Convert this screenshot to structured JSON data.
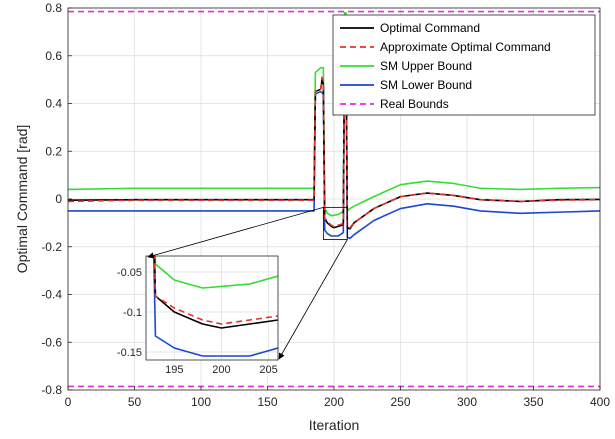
{
  "chart_data": {
    "type": "line",
    "title": "",
    "xlabel": "Iteration",
    "ylabel": "Optimal Command [rad]",
    "xlim": [
      0,
      400
    ],
    "ylim": [
      -0.8,
      0.8
    ],
    "xticks": [
      0,
      50,
      100,
      150,
      200,
      250,
      300,
      350,
      400
    ],
    "yticks": [
      -0.8,
      -0.6,
      -0.4,
      -0.2,
      0,
      0.2,
      0.4,
      0.6,
      0.8
    ],
    "xtick_labels": [
      "0",
      "50",
      "100",
      "150",
      "200",
      "250",
      "300",
      "350",
      "400"
    ],
    "ytick_labels": [
      "-0.8",
      "-0.6",
      "-0.4",
      "-0.2",
      "0",
      "0.2",
      "0.4",
      "0.6",
      "0.8"
    ],
    "grid": true,
    "legend_position": "top-right",
    "series": [
      {
        "name": "Optimal Command",
        "color": "#000000",
        "dash": "solid",
        "points": [
          [
            0,
            -0.005
          ],
          [
            50,
            -0.003
          ],
          [
            100,
            -0.003
          ],
          [
            150,
            -0.003
          ],
          [
            185,
            -0.003
          ],
          [
            186,
            0.45
          ],
          [
            190,
            0.46
          ],
          [
            191,
            0.5
          ],
          [
            192,
            0.48
          ],
          [
            193,
            -0.08
          ],
          [
            195,
            -0.1
          ],
          [
            198,
            -0.115
          ],
          [
            200,
            -0.12
          ],
          [
            203,
            -0.115
          ],
          [
            206,
            -0.11
          ],
          [
            207,
            -0.1
          ],
          [
            208,
            0.72
          ],
          [
            209,
            0.73
          ],
          [
            210,
            -0.12
          ],
          [
            212,
            -0.125
          ],
          [
            215,
            -0.1
          ],
          [
            230,
            -0.04
          ],
          [
            250,
            0.01
          ],
          [
            270,
            0.025
          ],
          [
            290,
            0.015
          ],
          [
            310,
            -0.003
          ],
          [
            340,
            -0.01
          ],
          [
            370,
            -0.003
          ],
          [
            400,
            -0.002
          ]
        ]
      },
      {
        "name": "Approximate Optimal Command",
        "color": "#e8312a",
        "dash": "dashed",
        "points": [
          [
            0,
            -0.01
          ],
          [
            50,
            -0.005
          ],
          [
            100,
            -0.005
          ],
          [
            150,
            -0.005
          ],
          [
            185,
            -0.005
          ],
          [
            186,
            0.45
          ],
          [
            190,
            0.46
          ],
          [
            191,
            0.51
          ],
          [
            192,
            0.49
          ],
          [
            193,
            -0.08
          ],
          [
            195,
            -0.095
          ],
          [
            198,
            -0.11
          ],
          [
            200,
            -0.115
          ],
          [
            203,
            -0.11
          ],
          [
            206,
            -0.105
          ],
          [
            207,
            -0.1
          ],
          [
            208,
            0.72
          ],
          [
            209,
            0.73
          ],
          [
            210,
            -0.12
          ],
          [
            212,
            -0.12
          ],
          [
            215,
            -0.1
          ],
          [
            230,
            -0.04
          ],
          [
            250,
            0.01
          ],
          [
            270,
            0.025
          ],
          [
            290,
            0.015
          ],
          [
            310,
            -0.003
          ],
          [
            340,
            -0.01
          ],
          [
            370,
            -0.005
          ],
          [
            400,
            -0.003
          ]
        ]
      },
      {
        "name": "SM Upper Bound",
        "color": "#33dd33",
        "dash": "solid",
        "points": [
          [
            0,
            0.04
          ],
          [
            50,
            0.045
          ],
          [
            100,
            0.045
          ],
          [
            150,
            0.045
          ],
          [
            185,
            0.045
          ],
          [
            186,
            0.53
          ],
          [
            190,
            0.55
          ],
          [
            192,
            0.55
          ],
          [
            193,
            -0.04
          ],
          [
            195,
            -0.06
          ],
          [
            198,
            -0.07
          ],
          [
            200,
            -0.068
          ],
          [
            203,
            -0.065
          ],
          [
            206,
            -0.055
          ],
          [
            207,
            -0.05
          ],
          [
            208,
            0.78
          ],
          [
            209,
            0.78
          ],
          [
            210,
            -0.05
          ],
          [
            212,
            -0.04
          ],
          [
            215,
            -0.03
          ],
          [
            230,
            0.01
          ],
          [
            250,
            0.06
          ],
          [
            270,
            0.075
          ],
          [
            290,
            0.065
          ],
          [
            310,
            0.045
          ],
          [
            340,
            0.04
          ],
          [
            370,
            0.045
          ],
          [
            400,
            0.048
          ]
        ]
      },
      {
        "name": "SM Lower Bound",
        "color": "#1947d6",
        "dash": "solid",
        "points": [
          [
            0,
            -0.05
          ],
          [
            50,
            -0.05
          ],
          [
            100,
            -0.05
          ],
          [
            150,
            -0.05
          ],
          [
            185,
            -0.05
          ],
          [
            186,
            0.44
          ],
          [
            190,
            0.45
          ],
          [
            192,
            0.44
          ],
          [
            193,
            -0.13
          ],
          [
            195,
            -0.145
          ],
          [
            198,
            -0.155
          ],
          [
            200,
            -0.155
          ],
          [
            203,
            -0.155
          ],
          [
            206,
            -0.145
          ],
          [
            207,
            -0.14
          ],
          [
            208,
            0.68
          ],
          [
            209,
            0.73
          ],
          [
            210,
            -0.16
          ],
          [
            212,
            -0.165
          ],
          [
            215,
            -0.15
          ],
          [
            230,
            -0.09
          ],
          [
            250,
            -0.04
          ],
          [
            270,
            -0.02
          ],
          [
            290,
            -0.03
          ],
          [
            310,
            -0.05
          ],
          [
            340,
            -0.06
          ],
          [
            370,
            -0.055
          ],
          [
            400,
            -0.05
          ]
        ]
      },
      {
        "name": "Real Bounds",
        "color": "#e02ee0",
        "dash": "dashed",
        "segments": [
          [
            [
              0,
              0.785
            ],
            [
              400,
              0.785
            ]
          ],
          [
            [
              0,
              -0.785
            ],
            [
              400,
              -0.785
            ]
          ]
        ]
      }
    ],
    "inset": {
      "xlim": [
        192,
        206
      ],
      "ylim": [
        -0.16,
        -0.03
      ],
      "xticks": [
        195,
        200,
        205
      ],
      "yticks": [
        -0.15,
        -0.1,
        -0.05
      ],
      "xtick_labels": [
        "195",
        "200",
        "205"
      ],
      "ytick_labels": [
        "-0.15",
        "-0.1",
        "-0.05"
      ],
      "zoom_region": {
        "x": [
          192,
          210
        ],
        "y": [
          -0.17,
          -0.035
        ]
      }
    }
  }
}
